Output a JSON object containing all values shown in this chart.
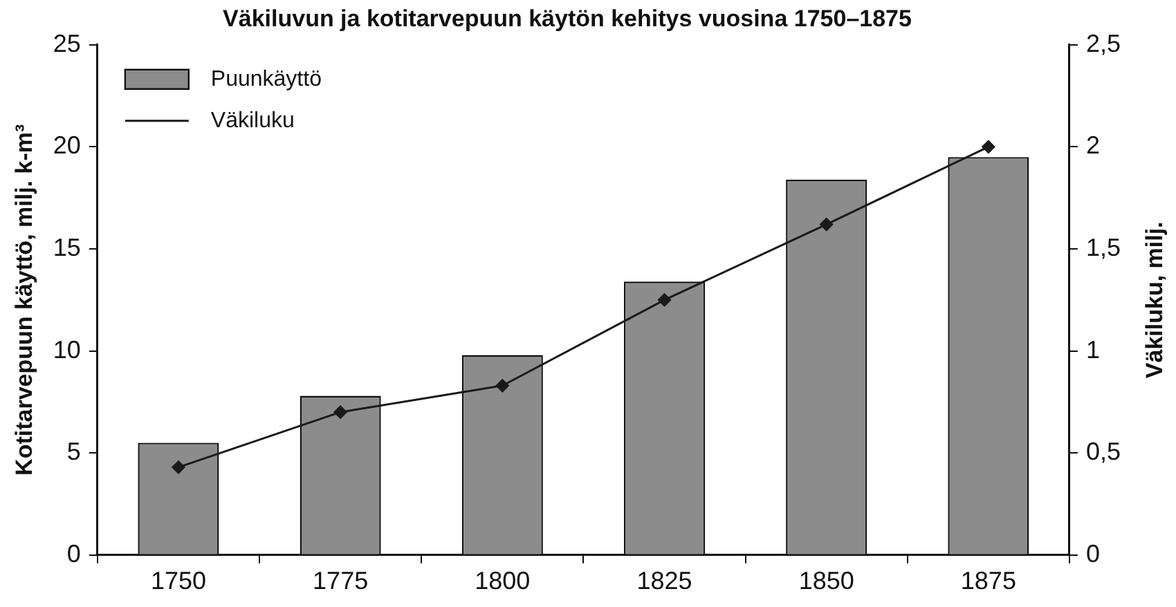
{
  "chart_data": {
    "type": "bar",
    "title": "Väkiluvun ja kotitarvepuun käytön kehitys vuosina 1750–1875",
    "ylabel": "Kotitarvepuun käyttö, milj. k-m³",
    "y2label": "Väkiluku, milj.",
    "categories": [
      "1750",
      "1775",
      "1800",
      "1825",
      "1850",
      "1875"
    ],
    "series": [
      {
        "name": "Puunkäyttö",
        "color": "#8c8c8c",
        "values": [
          5.5,
          7.8,
          9.8,
          13.4,
          18.4,
          19.5
        ]
      },
      {
        "name": "Väkiluku",
        "type": "line",
        "axis": "y2",
        "color": "#1a1a1a",
        "values": [
          0.43,
          0.7,
          0.83,
          1.25,
          1.62,
          2.0
        ]
      }
    ],
    "ylim": [
      0,
      25
    ],
    "yticks": [
      0,
      5,
      10,
      15,
      20,
      25
    ],
    "y2lim": [
      0,
      2.5
    ],
    "y2ticks": [
      0,
      {
        "value": 0.5,
        "label": "0,5"
      },
      1,
      {
        "value": 1.5,
        "label": "1,5"
      },
      2,
      {
        "value": 2.5,
        "label": "2,5"
      }
    ],
    "grid": false,
    "legend": "top left",
    "marker": "diamond",
    "line_style": "solid"
  }
}
